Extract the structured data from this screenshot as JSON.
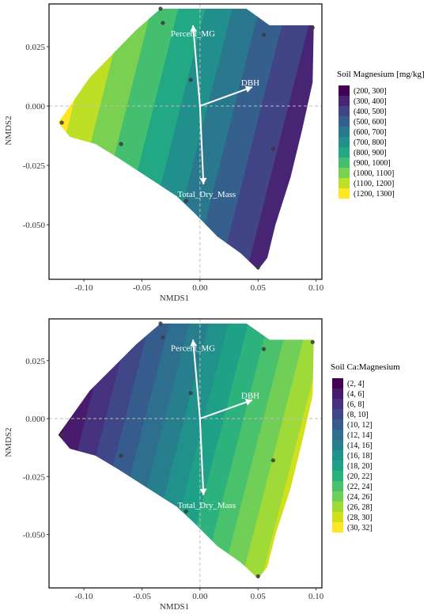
{
  "chart_data": [
    {
      "type": "contour",
      "xlabel": "NMDS1",
      "ylabel": "NMDS2",
      "xlim": [
        -0.13,
        0.105
      ],
      "ylim": [
        -0.073,
        0.043
      ],
      "x_ticks": [
        -0.1,
        -0.05,
        0.0,
        0.05,
        0.1
      ],
      "x_tick_labels": [
        "-0.10",
        "-0.05",
        "0.00",
        "0.05",
        "0.10"
      ],
      "y_ticks": [
        0.025,
        0.0,
        -0.025,
        -0.05
      ],
      "y_tick_labels": [
        "0.025",
        "0.000",
        "-0.025",
        "-0.050"
      ],
      "grid": false,
      "legend_position": "right",
      "legend": {
        "title": "Soil Magnesium [mg/kg]",
        "entries": [
          "(200, 300]",
          "(300, 400]",
          "(400, 500]",
          "(500, 600]",
          "(600, 700]",
          "(700, 800]",
          "(800, 900]",
          "(900, 1000]",
          "(1000, 1100]",
          "(1100, 1200]",
          "(1200, 1300]"
        ],
        "colors": [
          "#440154",
          "#482475",
          "#414487",
          "#355f8d",
          "#2a788e",
          "#21908d",
          "#22a884",
          "#44bf70",
          "#7ad151",
          "#bddf26",
          "#fde725"
        ]
      },
      "gradient": {
        "direction": "decreasing_to_right"
      },
      "vectors": [
        {
          "label": "Percent_MG",
          "x": -0.006,
          "y": 0.034
        },
        {
          "label": "DBH",
          "x": 0.045,
          "y": 0.008
        },
        {
          "label": "Total_Dry_Mass",
          "x": 0.003,
          "y": -0.033
        }
      ],
      "points": [
        {
          "x": -0.034,
          "y": 0.041
        },
        {
          "x": -0.032,
          "y": 0.035
        },
        {
          "x": 0.055,
          "y": 0.03
        },
        {
          "x": 0.097,
          "y": 0.033
        },
        {
          "x": -0.008,
          "y": 0.011
        },
        {
          "x": -0.119,
          "y": -0.007
        },
        {
          "x": -0.068,
          "y": -0.016
        },
        {
          "x": 0.063,
          "y": -0.018
        },
        {
          "x": -0.012,
          "y": -0.04
        },
        {
          "x": 0.05,
          "y": -0.068
        }
      ],
      "boundary": [
        [
          -0.034,
          0.041
        ],
        [
          0.0,
          0.041
        ],
        [
          0.04,
          0.041
        ],
        [
          0.06,
          0.034
        ],
        [
          0.098,
          0.034
        ],
        [
          0.097,
          0.01
        ],
        [
          0.088,
          -0.01
        ],
        [
          0.078,
          -0.03
        ],
        [
          0.065,
          -0.05
        ],
        [
          0.058,
          -0.064
        ],
        [
          0.05,
          -0.069
        ],
        [
          0.035,
          -0.062
        ],
        [
          0.015,
          -0.055
        ],
        [
          -0.005,
          -0.045
        ],
        [
          -0.02,
          -0.038
        ],
        [
          -0.045,
          -0.03
        ],
        [
          -0.07,
          -0.022
        ],
        [
          -0.09,
          -0.016
        ],
        [
          -0.112,
          -0.013
        ],
        [
          -0.122,
          -0.007
        ],
        [
          -0.112,
          0.0
        ],
        [
          -0.095,
          0.012
        ],
        [
          -0.075,
          0.022
        ],
        [
          -0.055,
          0.032
        ]
      ]
    },
    {
      "type": "contour",
      "xlabel": "NMDS1",
      "ylabel": "NMDS2",
      "xlim": [
        -0.13,
        0.105
      ],
      "ylim": [
        -0.073,
        0.043
      ],
      "x_ticks": [
        -0.1,
        -0.05,
        0.0,
        0.05,
        0.1
      ],
      "x_tick_labels": [
        "-0.10",
        "-0.05",
        "0.00",
        "0.05",
        "0.10"
      ],
      "y_ticks": [
        0.025,
        0.0,
        -0.025,
        -0.05
      ],
      "y_tick_labels": [
        "0.025",
        "0.000",
        "-0.025",
        "-0.050"
      ],
      "grid": false,
      "legend_position": "right",
      "legend": {
        "title": "Soil Ca:Magnesium",
        "entries": [
          "(2, 4]",
          "(4, 6]",
          "(6, 8]",
          "(8, 10]",
          "(10, 12]",
          "(12, 14]",
          "(14, 16]",
          "(16, 18]",
          "(18, 20]",
          "(20, 22]",
          "(22, 24]",
          "(24, 26]",
          "(26, 28]",
          "(28, 30]",
          "(30, 32]"
        ],
        "colors": [
          "#440154",
          "#481b6d",
          "#46327e",
          "#3f4788",
          "#365c8d",
          "#2e6e8e",
          "#277f8e",
          "#21918c",
          "#1fa187",
          "#2db27d",
          "#4ac16d",
          "#71cf57",
          "#a0da39",
          "#d0e11c",
          "#fde725"
        ]
      },
      "gradient": {
        "direction": "increasing_to_right"
      },
      "vectors": [
        {
          "label": "Percent_MG",
          "x": -0.006,
          "y": 0.034
        },
        {
          "label": "DBH",
          "x": 0.045,
          "y": 0.008
        },
        {
          "label": "Total_Dry_Mass",
          "x": 0.003,
          "y": -0.033
        }
      ],
      "points": [
        {
          "x": -0.034,
          "y": 0.041
        },
        {
          "x": -0.032,
          "y": 0.035
        },
        {
          "x": 0.055,
          "y": 0.03
        },
        {
          "x": 0.097,
          "y": 0.033
        },
        {
          "x": -0.008,
          "y": 0.011
        },
        {
          "x": -0.119,
          "y": -0.007
        },
        {
          "x": -0.068,
          "y": -0.016
        },
        {
          "x": 0.063,
          "y": -0.018
        },
        {
          "x": -0.012,
          "y": -0.04
        },
        {
          "x": 0.05,
          "y": -0.068
        }
      ],
      "boundary": [
        [
          -0.034,
          0.041
        ],
        [
          0.0,
          0.041
        ],
        [
          0.04,
          0.041
        ],
        [
          0.06,
          0.034
        ],
        [
          0.098,
          0.034
        ],
        [
          0.097,
          0.01
        ],
        [
          0.088,
          -0.01
        ],
        [
          0.078,
          -0.03
        ],
        [
          0.065,
          -0.05
        ],
        [
          0.058,
          -0.064
        ],
        [
          0.05,
          -0.069
        ],
        [
          0.035,
          -0.062
        ],
        [
          0.015,
          -0.055
        ],
        [
          -0.005,
          -0.045
        ],
        [
          -0.02,
          -0.038
        ],
        [
          -0.045,
          -0.03
        ],
        [
          -0.07,
          -0.022
        ],
        [
          -0.09,
          -0.016
        ],
        [
          -0.112,
          -0.013
        ],
        [
          -0.122,
          -0.007
        ],
        [
          -0.112,
          0.0
        ],
        [
          -0.095,
          0.012
        ],
        [
          -0.075,
          0.022
        ],
        [
          -0.055,
          0.032
        ]
      ]
    }
  ]
}
